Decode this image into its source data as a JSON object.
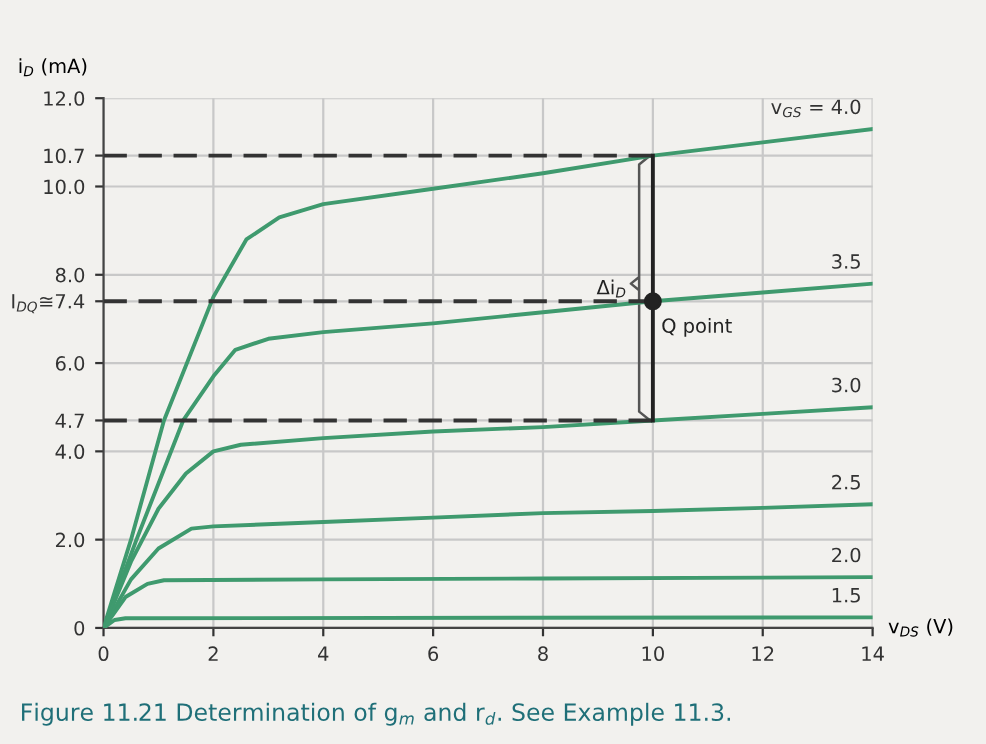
{
  "chart_data": {
    "type": "line",
    "xlabel": "v$_{DS}$ (V)",
    "ylabel": "i$_{D}$ (mA)",
    "xlim": [
      0,
      14
    ],
    "ylim": [
      0,
      12
    ],
    "xticks": [
      0,
      2,
      4,
      6,
      8,
      10,
      12,
      14
    ],
    "yticks": [
      0,
      {
        "value": 2,
        "label": "2.0"
      },
      {
        "value": 4,
        "label": "4.0"
      },
      4.7,
      {
        "value": 6,
        "label": "6.0"
      },
      {
        "value": 7.4,
        "label": "I$_{DQ}$≅7.4"
      },
      {
        "value": 8,
        "label": "8.0"
      },
      {
        "value": 10,
        "label": "10.0"
      },
      10.7,
      {
        "value": 12,
        "label": "12.0"
      }
    ],
    "grid": true,
    "legend": false,
    "line_style": "solid",
    "marker": "none",
    "series": [
      {
        "name": "v$_{GS}$ = 4.0",
        "color": "#3f9a6e",
        "x": [
          0,
          0.5,
          1.1,
          2,
          2.6,
          3.2,
          4,
          6,
          8,
          10,
          12,
          14
        ],
        "values": [
          0,
          2.0,
          4.7,
          7.5,
          8.8,
          9.3,
          9.6,
          9.95,
          10.3,
          10.7,
          11.0,
          11.3
        ]
      },
      {
        "name": "3.5",
        "color": "#3f9a6e",
        "x": [
          0,
          0.6,
          1.45,
          2,
          2.4,
          3,
          4,
          6,
          8,
          10,
          12,
          14
        ],
        "values": [
          0,
          2.0,
          4.7,
          5.7,
          6.3,
          6.55,
          6.7,
          6.9,
          7.15,
          7.4,
          7.6,
          7.8
        ]
      },
      {
        "name": "3.0",
        "color": "#3f9a6e",
        "x": [
          0,
          0.5,
          1,
          1.5,
          2,
          2.5,
          4,
          6,
          8,
          10,
          12,
          14
        ],
        "values": [
          0,
          1.5,
          2.7,
          3.5,
          4.0,
          4.15,
          4.3,
          4.45,
          4.55,
          4.7,
          4.85,
          5.0
        ]
      },
      {
        "name": "2.5",
        "color": "#3f9a6e",
        "x": [
          0,
          0.5,
          1,
          1.6,
          2,
          4,
          6,
          8,
          10,
          12,
          14
        ],
        "values": [
          0,
          1.1,
          1.8,
          2.25,
          2.3,
          2.4,
          2.5,
          2.6,
          2.65,
          2.72,
          2.8
        ]
      },
      {
        "name": "2.0",
        "color": "#3f9a6e",
        "x": [
          0,
          0.4,
          0.8,
          1.1,
          4,
          8,
          14
        ],
        "values": [
          0,
          0.7,
          1.0,
          1.08,
          1.1,
          1.12,
          1.15
        ]
      },
      {
        "name": "1.5",
        "color": "#3f9a6e",
        "x": [
          0,
          0.2,
          0.4,
          14
        ],
        "values": [
          0,
          0.18,
          0.22,
          0.24
        ]
      },
      {
        "color": "#333333",
        "line_style": "dashed",
        "x": [
          0,
          10
        ],
        "values": [
          10.7,
          10.7
        ]
      },
      {
        "color": "#333333",
        "line_style": "dashed",
        "x": [
          0,
          10
        ],
        "values": [
          7.4,
          7.4
        ]
      },
      {
        "color": "#333333",
        "line_style": "dashed",
        "x": [
          0,
          10
        ],
        "values": [
          4.7,
          4.7
        ]
      },
      {
        "color": "#222222",
        "x": [
          10,
          10
        ],
        "values": [
          4.7,
          10.7
        ]
      },
      {
        "type": "scatter",
        "marker": "circle",
        "color": "#222222",
        "x": [
          10
        ],
        "values": [
          7.4
        ]
      }
    ],
    "annotations": [
      {
        "text": "Q point",
        "x": 10,
        "y": 7.4
      },
      "Δi$_{D}$",
      "Figure 11.21 Determination of g$_{m}$ and r$_{d}$. See Example 11.3."
    ]
  }
}
